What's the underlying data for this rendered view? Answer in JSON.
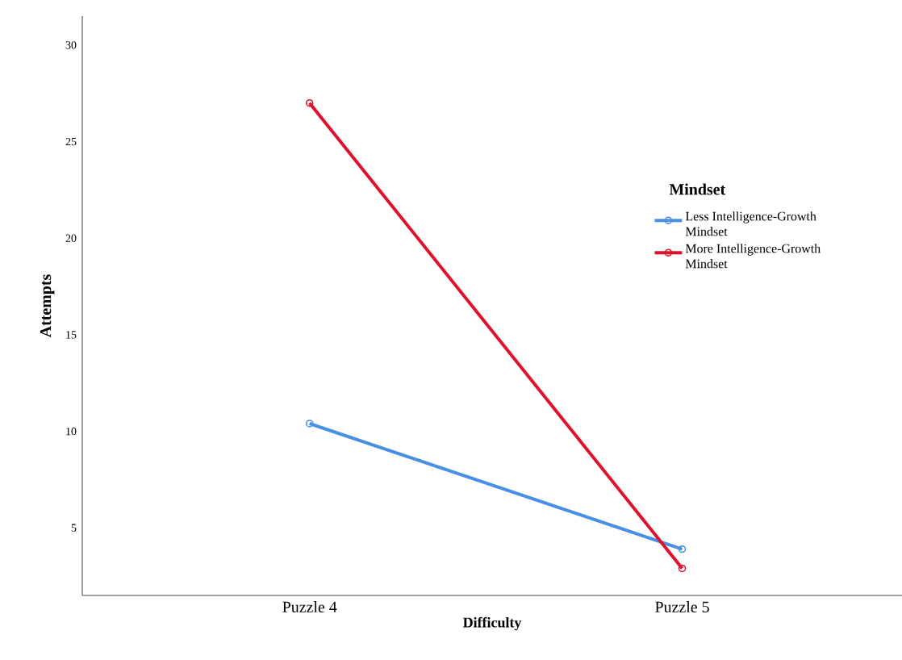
{
  "chart_data": {
    "type": "line",
    "xlabel": "Difficulty",
    "ylabel": "Attempts",
    "legend_title": "Mindset",
    "categories": [
      "Puzzle 4",
      "Puzzle 5"
    ],
    "series": [
      {
        "name": "Less Intelligence-Growth Mindset",
        "color": "#4a90e2",
        "values": [
          10.4,
          3.9
        ]
      },
      {
        "name": "More Intelligence-Growth Mindset",
        "color": "#e0112b",
        "values": [
          27.0,
          2.9
        ]
      }
    ],
    "ylim": [
      1.5,
      31.5
    ],
    "yticks": [
      5,
      10,
      15,
      20,
      25,
      30
    ],
    "grid": false,
    "legend": "right",
    "marker": "circle",
    "line_style": "solid"
  }
}
